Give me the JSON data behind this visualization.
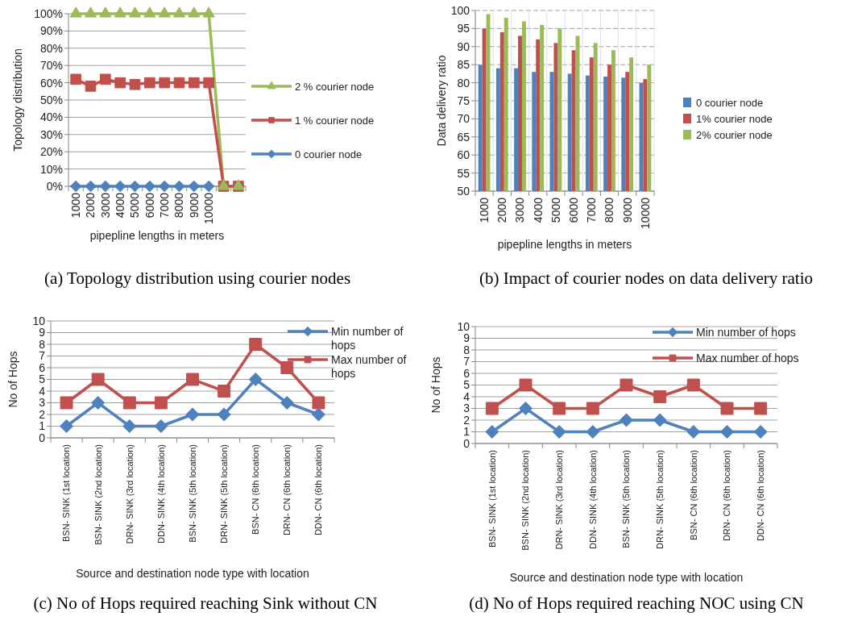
{
  "chart_data": [
    {
      "type": "line",
      "title": "(a) Topology distribution using courier nodes",
      "xlabel": "pipepline lengths in meters",
      "ylabel": "Topology distribution",
      "categories": [
        "1000",
        "2000",
        "3000",
        "4000",
        "5000",
        "6000",
        "7000",
        "8000",
        "9000",
        "10000",
        null,
        null
      ],
      "ylim": [
        0,
        100
      ],
      "yticks": [
        {
          "value": 0,
          "label": "0%"
        },
        {
          "value": 10,
          "label": "10%"
        },
        {
          "value": 20,
          "label": "20%"
        },
        {
          "value": 30,
          "label": "30%"
        },
        {
          "value": 40,
          "label": "40%"
        },
        {
          "value": 50,
          "label": "50%"
        },
        {
          "value": 60,
          "label": "60%"
        },
        {
          "value": 70,
          "label": "70%"
        },
        {
          "value": 80,
          "label": "80%"
        },
        {
          "value": 90,
          "label": "90%"
        },
        {
          "value": 100,
          "label": "100%"
        }
      ],
      "grid": "y",
      "legend": "right",
      "series": [
        {
          "name": "2 % courier node",
          "color": "#9bbb59",
          "marker": "triangle",
          "values": [
            100,
            100,
            100,
            100,
            100,
            100,
            100,
            100,
            100,
            100,
            0,
            0
          ]
        },
        {
          "name": "1 % courier node",
          "color": "#c0504d",
          "marker": "square",
          "values": [
            62,
            58,
            62,
            60,
            59,
            60,
            60,
            60,
            60,
            60,
            0,
            0
          ]
        },
        {
          "name": "0 courier node",
          "color": "#4f81bd",
          "marker": "diamond",
          "values": [
            0,
            0,
            0,
            0,
            0,
            0,
            0,
            0,
            0,
            0,
            null,
            null
          ]
        }
      ]
    },
    {
      "type": "bar",
      "title": "(b) Impact of courier nodes on data delivery ratio",
      "xlabel": "pipepline lengths in meters",
      "ylabel": "Data delivery ratio",
      "categories": [
        "1000",
        "2000",
        "3000",
        "4000",
        "5000",
        "6000",
        "7000",
        "8000",
        "9000",
        "10000"
      ],
      "ylim": [
        50,
        100
      ],
      "yticks": [
        50,
        55,
        60,
        65,
        70,
        75,
        80,
        85,
        90,
        95,
        100
      ],
      "grid": true,
      "legend": "right",
      "series": [
        {
          "name": "0 courier node",
          "color": "#4f81bd",
          "values": [
            85,
            84,
            84,
            83,
            83,
            82.5,
            82,
            81.7,
            81.4,
            80
          ]
        },
        {
          "name": "1% courier node",
          "color": "#c0504d",
          "values": [
            95,
            94,
            93,
            92,
            91,
            89,
            87,
            85,
            83,
            81
          ]
        },
        {
          "name": "2% courier node",
          "color": "#9bbb59",
          "values": [
            99,
            98,
            97,
            96,
            95,
            93,
            91,
            89,
            87,
            85
          ]
        }
      ]
    },
    {
      "type": "line",
      "title": "(c) No of Hops required reaching Sink without CN",
      "xlabel": "Source and destination node type with location",
      "ylabel": "No of Hops",
      "categories": [
        "BSN- SINK (1st location)",
        "BSN- SINK (2nd location)",
        "DRN- SINK (3rd location)",
        "DDN- SINK (4th location)",
        "BSN- SINK (5th location)",
        "DRN- SINK (5th location)",
        "BSN- CN (6th location)",
        "DRN- CN (6th location)",
        "DDN- CN (6th location)"
      ],
      "ylim": [
        0,
        10
      ],
      "yticks": [
        0,
        1,
        2,
        3,
        4,
        5,
        6,
        7,
        8,
        9,
        10
      ],
      "grid": "y",
      "legend": "top right",
      "series": [
        {
          "name": "Min number of hops",
          "color": "#4f81bd",
          "marker": "diamond",
          "values": [
            1,
            3,
            1,
            1,
            2,
            2,
            5,
            3,
            2
          ]
        },
        {
          "name": "Max number of hops",
          "color": "#c0504d",
          "marker": "square",
          "values": [
            3,
            5,
            3,
            3,
            5,
            4,
            8,
            6,
            3
          ]
        }
      ]
    },
    {
      "type": "line",
      "title": "(d) No of Hops required reaching NOC using CN",
      "xlabel": "Source and destination node type with location",
      "ylabel": "No of Hops",
      "categories": [
        "BSN- SINK (1st location)",
        "BSN- SINK (2nd location)",
        "DRN- SINK (3rd location)",
        "DDN- SINK (4th location)",
        "BSN- SINK (5th location)",
        "DRN- SINK (5th location)",
        "BSN- CN (6th location)",
        "DRN- CN (6th location)",
        "DDN- CN (6th location)"
      ],
      "ylim": [
        0,
        10
      ],
      "yticks": [
        0,
        1,
        2,
        3,
        4,
        5,
        6,
        7,
        8,
        9,
        10
      ],
      "grid": "y",
      "legend": "top right",
      "series": [
        {
          "name": "Min number of hops",
          "color": "#4f81bd",
          "marker": "diamond",
          "values": [
            1,
            3,
            1,
            1,
            2,
            2,
            1,
            1,
            1
          ]
        },
        {
          "name": "Max number of hops",
          "color": "#c0504d",
          "marker": "square",
          "values": [
            3,
            5,
            3,
            3,
            5,
            4,
            5,
            3,
            3
          ]
        }
      ]
    }
  ]
}
